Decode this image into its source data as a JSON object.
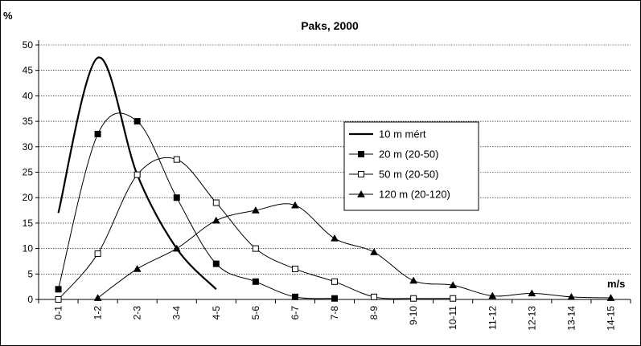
{
  "chart_data": {
    "type": "line",
    "title": "Paks, 2000",
    "ylabel": "%",
    "xlabel": "m/s",
    "ylim": [
      0,
      50
    ],
    "yticks": [
      0,
      5,
      10,
      15,
      20,
      25,
      30,
      35,
      40,
      45,
      50
    ],
    "categories": [
      "0-1",
      "1-2",
      "2-3",
      "3-4",
      "4-5",
      "5-6",
      "6-7",
      "7-8",
      "8-9",
      "9-10",
      "10-11",
      "11-12",
      "12-13",
      "13-14",
      "14-15"
    ],
    "grid": true,
    "legend_position": "center-right",
    "series": [
      {
        "name": "10 m mért",
        "marker": "none",
        "values": [
          17,
          47.5,
          24.5,
          10,
          2,
          null,
          null,
          null,
          null,
          null,
          null,
          null,
          null,
          null,
          null
        ]
      },
      {
        "name": "20 m (20-50)",
        "marker": "filled-square",
        "values": [
          2,
          32.5,
          35,
          20,
          7,
          3.5,
          0.5,
          0.2,
          null,
          null,
          null,
          null,
          null,
          null,
          null
        ]
      },
      {
        "name": "50 m (20-50)",
        "marker": "open-square",
        "values": [
          0,
          9,
          24.5,
          27.5,
          19,
          10,
          6,
          3.5,
          0.5,
          0.2,
          0.2,
          null,
          null,
          null,
          null
        ]
      },
      {
        "name": "120 m (20-120)",
        "marker": "filled-triangle",
        "values": [
          null,
          0.3,
          6,
          10,
          15.5,
          17.5,
          18.5,
          12,
          9.3,
          3.7,
          2.8,
          0.7,
          1.2,
          0.5,
          0.3
        ]
      }
    ]
  }
}
